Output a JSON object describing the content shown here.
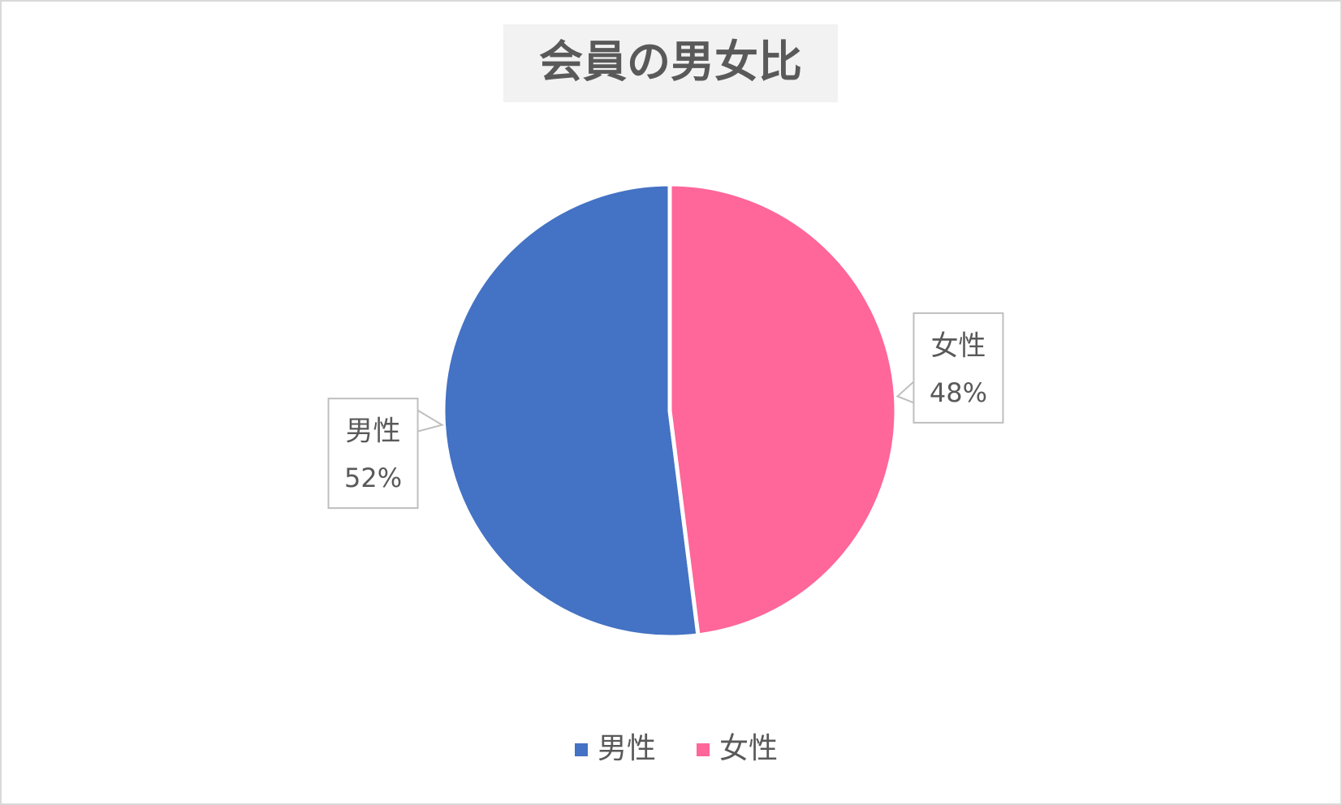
{
  "chart_data": {
    "type": "pie",
    "title": "会員の男女比",
    "categories": [
      "男性",
      "女性"
    ],
    "values": [
      52,
      48
    ],
    "value_labels": [
      "52%",
      "48%"
    ],
    "colors": [
      "#4472c4",
      "#ff6699"
    ],
    "legend": "bottom"
  }
}
